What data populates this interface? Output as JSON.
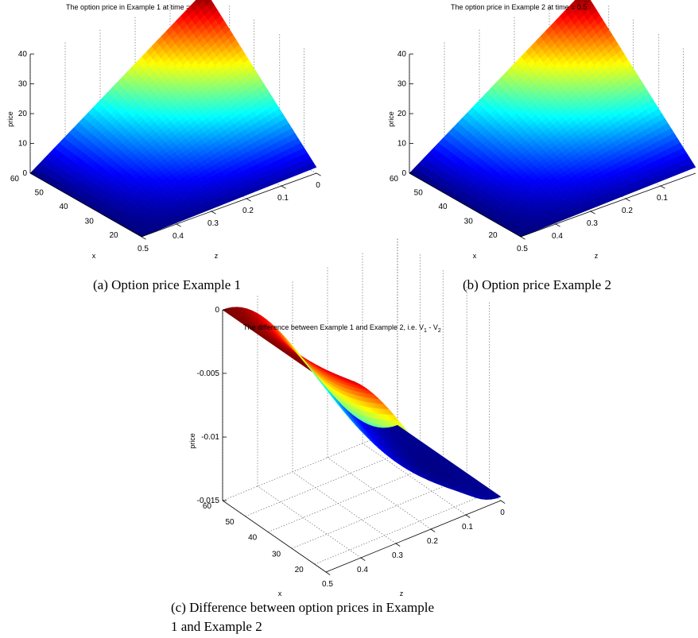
{
  "chart_data": [
    {
      "type": "surface",
      "title": "The option price in Example 1 at time = 0.5",
      "xlabel": "z",
      "ylabel": "x",
      "zlabel": "price",
      "x_ticks": [
        "0.5",
        "0.4",
        "0.3",
        "0.2",
        "0.1",
        "0"
      ],
      "y_ticks": [
        "60",
        "50",
        "40",
        "30",
        "20"
      ],
      "z_ticks": [
        "0",
        "10",
        "20",
        "30",
        "40"
      ],
      "x_range": [
        0,
        0.5
      ],
      "y_range": [
        15,
        60
      ],
      "z_range": [
        0,
        40
      ],
      "grid": true,
      "colormap": "jet",
      "corner_values": [
        {
          "z": 0.5,
          "x": 15,
          "price": 0
        },
        {
          "z": 0,
          "x": 15,
          "price": 2
        },
        {
          "z": 0,
          "x": 60,
          "price": 40
        },
        {
          "z": 0.5,
          "x": 60,
          "price": 0
        }
      ],
      "caption": "(a)  Option price Example 1"
    },
    {
      "type": "surface",
      "title": "The option price in Example 2 at time = 0.5",
      "xlabel": "z",
      "ylabel": "x",
      "zlabel": "price",
      "x_ticks": [
        "0.5",
        "0.4",
        "0.3",
        "0.2",
        "0.1"
      ],
      "y_ticks": [
        "60",
        "50",
        "40",
        "30",
        "20"
      ],
      "z_ticks": [
        "0",
        "10",
        "20",
        "30",
        "40"
      ],
      "x_range": [
        0,
        0.5
      ],
      "y_range": [
        15,
        60
      ],
      "z_range": [
        0,
        40
      ],
      "grid": true,
      "colormap": "jet",
      "corner_values": [
        {
          "z": 0.5,
          "x": 15,
          "price": 0
        },
        {
          "z": 0,
          "x": 15,
          "price": 2
        },
        {
          "z": 0,
          "x": 60,
          "price": 40
        },
        {
          "z": 0.5,
          "x": 60,
          "price": 0
        }
      ],
      "caption": "(b)  Option price Example 2"
    },
    {
      "type": "surface",
      "title_main": "The difference between Example 1 and Example 2, i.e. V",
      "title_sub1": "1",
      "title_mid": " - V",
      "title_sub2": "2",
      "xlabel": "z",
      "ylabel": "x",
      "zlabel": "price",
      "x_ticks": [
        "0.5",
        "0.4",
        "0.3",
        "0.2",
        "0.1",
        "0"
      ],
      "y_ticks": [
        "60",
        "50",
        "40",
        "30",
        "20"
      ],
      "z_ticks": [
        "0",
        "-0.005",
        "-0.01",
        "-0.015"
      ],
      "x_range": [
        0,
        0.5
      ],
      "y_range": [
        15,
        60
      ],
      "z_range": [
        -0.015,
        0
      ],
      "grid": true,
      "colormap": "jet",
      "corner_values": [
        {
          "z": 0.5,
          "x": 60,
          "price": 0
        },
        {
          "z": 0,
          "x": 60,
          "price": -0.015
        },
        {
          "z": 0,
          "x": 15,
          "price": -0.015
        },
        {
          "z": 0.5,
          "x": 15,
          "price": -0.006
        }
      ],
      "caption_line1": "(c)  Difference between option prices in Example",
      "caption_line2": "1 and Example 2"
    }
  ]
}
